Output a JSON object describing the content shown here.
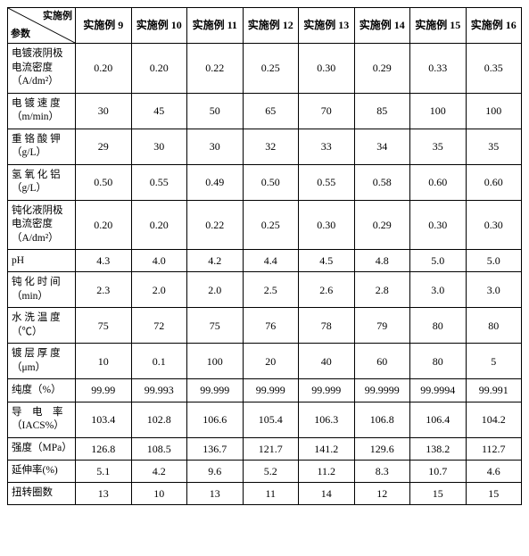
{
  "header": {
    "diag_top": "实施例",
    "diag_bot": "参数",
    "cols": [
      "实施例 9",
      "实施例 10",
      "实施例 11",
      "实施例 12",
      "实施例 13",
      "实施例 14",
      "实施例 15",
      "实施例 16"
    ]
  },
  "rows": [
    {
      "label": "电镀液阴极电流密度（A/dm²）",
      "cells": [
        "0.20",
        "0.20",
        "0.22",
        "0.25",
        "0.30",
        "0.29",
        "0.33",
        "0.35"
      ]
    },
    {
      "label": "电 镀 速 度（m/min）",
      "cells": [
        "30",
        "45",
        "50",
        "65",
        "70",
        "85",
        "100",
        "100"
      ]
    },
    {
      "label": "重 铬 酸 钾（g/L）",
      "cells": [
        "29",
        "30",
        "30",
        "32",
        "33",
        "34",
        "35",
        "35"
      ]
    },
    {
      "label": "氢 氧 化 铝（g/L）",
      "cells": [
        "0.50",
        "0.55",
        "0.49",
        "0.50",
        "0.55",
        "0.58",
        "0.60",
        "0.60"
      ]
    },
    {
      "label": "钝化液阴极电流密度（A/dm²）",
      "cells": [
        "0.20",
        "0.20",
        "0.22",
        "0.25",
        "0.30",
        "0.29",
        "0.30",
        "0.30"
      ]
    },
    {
      "label": "pH",
      "cells": [
        "4.3",
        "4.0",
        "4.2",
        "4.4",
        "4.5",
        "4.8",
        "5.0",
        "5.0"
      ]
    },
    {
      "label": "钝 化 时 间（min）",
      "cells": [
        "2.3",
        "2.0",
        "2.0",
        "2.5",
        "2.6",
        "2.8",
        "3.0",
        "3.0"
      ]
    },
    {
      "label": "水 洗 温 度（℃）",
      "cells": [
        "75",
        "72",
        "75",
        "76",
        "78",
        "79",
        "80",
        "80"
      ]
    },
    {
      "label": "镀 层 厚 度（μm）",
      "cells": [
        "10",
        "0.1",
        "100",
        "20",
        "40",
        "60",
        "80",
        "5"
      ]
    },
    {
      "label": "纯度（%）",
      "cells": [
        "99.99",
        "99.993",
        "99.999",
        "99.999",
        "99.999",
        "99.9999",
        "99.9994",
        "99.991"
      ]
    },
    {
      "label": "导　电　率（IACS%）",
      "cells": [
        "103.4",
        "102.8",
        "106.6",
        "105.4",
        "106.3",
        "106.8",
        "106.4",
        "104.2"
      ]
    },
    {
      "label": "强度（MPa）",
      "cells": [
        "126.8",
        "108.5",
        "136.7",
        "121.7",
        "141.2",
        "129.6",
        "138.2",
        "112.7"
      ]
    },
    {
      "label": "延伸率(%)",
      "cells": [
        "5.1",
        "4.2",
        "9.6",
        "5.2",
        "11.2",
        "8.3",
        "10.7",
        "4.6"
      ]
    },
    {
      "label": "扭转圈数",
      "cells": [
        "13",
        "10",
        "13",
        "11",
        "14",
        "12",
        "15",
        "15"
      ]
    }
  ]
}
